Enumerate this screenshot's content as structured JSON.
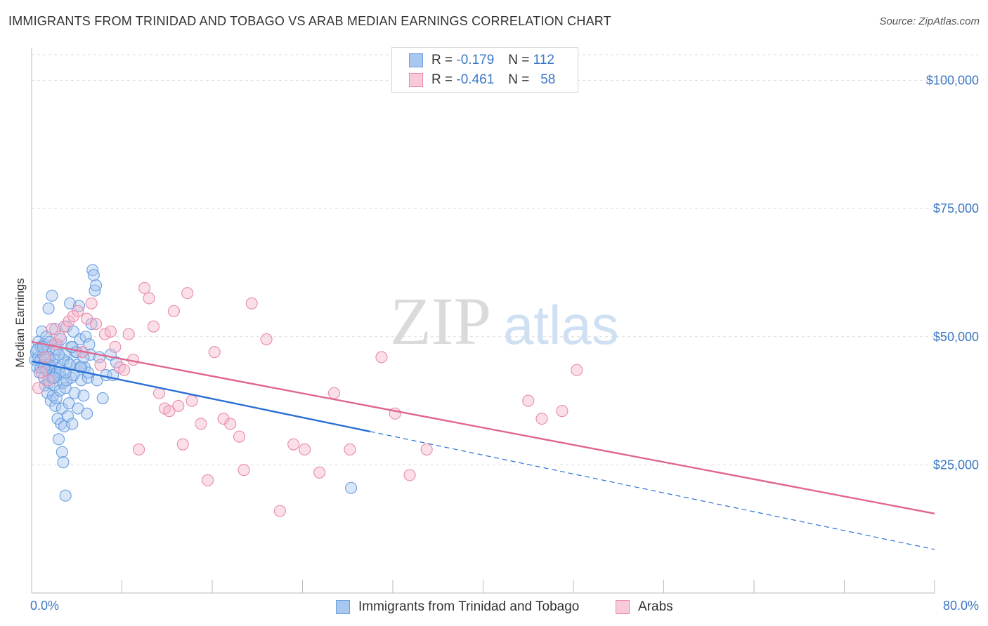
{
  "title": "IMMIGRANTS FROM TRINIDAD AND TOBAGO VS ARAB MEDIAN EARNINGS CORRELATION CHART",
  "source": "Source: ZipAtlas.com",
  "watermark": {
    "zip": "ZIP",
    "atlas": "atlas"
  },
  "legend": {
    "r_label": "R =",
    "n_label": "N =",
    "items": [
      {
        "r": "-0.179",
        "n": "112"
      },
      {
        "r": "-0.461",
        "n": "58"
      }
    ]
  },
  "chart_data": {
    "type": "scatter",
    "title": "IMMIGRANTS FROM TRINIDAD AND TOBAGO VS ARAB MEDIAN EARNINGS CORRELATION CHART",
    "xlabel": "",
    "ylabel": "Median Earnings",
    "xlim": [
      0,
      80
    ],
    "ylim": [
      0,
      105000
    ],
    "x_tick_labels": [
      "0.0%",
      "80.0%"
    ],
    "y_ticks": [
      25000,
      50000,
      75000,
      100000
    ],
    "y_tick_labels": [
      "$25,000",
      "$50,000",
      "$75,000",
      "$100,000"
    ],
    "grid": true,
    "legend_position": "top-center",
    "series": [
      {
        "name": "Immigrants from Trinidad and Tobago",
        "color": "#6a9fe0",
        "fill": "#a9c8ef",
        "trend": {
          "x": [
            0,
            30,
            80
          ],
          "y": [
            45200,
            31500,
            8500
          ],
          "solid_until": 30,
          "color": "#2a6fd4"
        },
        "x": [
          0.3,
          0.4,
          0.5,
          0.6,
          0.6,
          0.7,
          0.8,
          0.8,
          0.9,
          1.0,
          1.0,
          1.1,
          1.1,
          1.2,
          1.2,
          1.3,
          1.3,
          1.4,
          1.4,
          1.5,
          1.5,
          1.6,
          1.6,
          1.7,
          1.7,
          1.8,
          1.8,
          1.9,
          1.9,
          2.0,
          2.0,
          2.1,
          2.1,
          2.2,
          2.2,
          2.3,
          2.3,
          2.4,
          2.4,
          2.5,
          2.5,
          2.6,
          2.6,
          2.7,
          2.7,
          2.8,
          2.8,
          2.9,
          2.9,
          3.0,
          3.0,
          3.1,
          3.2,
          3.2,
          3.3,
          3.4,
          3.5,
          3.5,
          3.6,
          3.7,
          3.8,
          3.9,
          4.0,
          4.1,
          4.2,
          4.3,
          4.4,
          4.5,
          4.6,
          4.7,
          4.8,
          4.9,
          5.0,
          5.1,
          5.2,
          5.3,
          5.4,
          5.5,
          5.6,
          5.7,
          5.8,
          6.0,
          6.3,
          6.6,
          7.0,
          7.2,
          7.5,
          0.5,
          0.8,
          1.0,
          1.3,
          1.6,
          1.9,
          2.2,
          2.5,
          2.8,
          3.1,
          3.4,
          3.7,
          4.0,
          4.3,
          4.6,
          5.0,
          1.2,
          1.5,
          2.0,
          2.4,
          3.0,
          3.6,
          4.4,
          28.3,
          1.1
        ],
        "y": [
          45500,
          47000,
          44000,
          46000,
          49000,
          43000,
          48000,
          45500,
          51000,
          46500,
          44500,
          42000,
          48500,
          40500,
          47000,
          44000,
          50000,
          39000,
          46000,
          43000,
          55500,
          41000,
          49000,
          37500,
          44500,
          58000,
          42000,
          38500,
          47500,
          40500,
          45500,
          36500,
          51500,
          43000,
          38000,
          48500,
          34000,
          42500,
          30000,
          39500,
          44000,
          33000,
          49500,
          36000,
          27500,
          41000,
          25500,
          32500,
          46500,
          19000,
          40000,
          52000,
          34500,
          45000,
          37000,
          56500,
          42000,
          48000,
          33000,
          51000,
          39000,
          47000,
          44500,
          36000,
          56000,
          49500,
          41500,
          47000,
          38500,
          44000,
          50000,
          35000,
          42000,
          48500,
          46500,
          52500,
          63000,
          62000,
          59000,
          60000,
          41500,
          46000,
          38000,
          42500,
          46500,
          42500,
          45000,
          47500,
          44000,
          48000,
          43500,
          46000,
          42000,
          47500,
          43000,
          45500,
          41500,
          44500,
          42500,
          47000,
          44000,
          46000,
          43000,
          45500,
          44500,
          42000,
          46500,
          43000,
          48000,
          44000,
          20500,
          44000
        ]
      },
      {
        "name": "Arabs",
        "color": "#e98aaa",
        "fill": "#f5b8cb",
        "trend": {
          "x": [
            0,
            80
          ],
          "y": [
            49000,
            15500
          ],
          "solid_until": 80,
          "color": "#e0668e"
        },
        "x": [
          0.6,
          0.9,
          1.2,
          1.5,
          1.8,
          2.1,
          2.5,
          2.9,
          3.3,
          3.7,
          4.1,
          4.5,
          4.9,
          5.3,
          5.7,
          6.1,
          6.5,
          7.0,
          7.4,
          7.8,
          8.2,
          8.6,
          9.0,
          9.5,
          10.0,
          10.4,
          10.8,
          11.3,
          11.8,
          12.2,
          12.6,
          13.0,
          13.4,
          13.8,
          14.2,
          15.0,
          15.6,
          16.2,
          17.0,
          17.6,
          18.4,
          18.8,
          19.5,
          20.8,
          22.0,
          23.2,
          24.2,
          25.5,
          26.8,
          28.2,
          31.0,
          32.2,
          33.5,
          35.0,
          44.0,
          45.2,
          47.0,
          48.3
        ],
        "y": [
          40000,
          43000,
          46000,
          41500,
          51500,
          48500,
          50000,
          52000,
          53000,
          54000,
          55000,
          47000,
          53500,
          56500,
          52500,
          44500,
          50500,
          51000,
          48000,
          44000,
          43500,
          50500,
          45500,
          28000,
          59500,
          57500,
          52000,
          39000,
          36000,
          35500,
          55000,
          36500,
          29000,
          58500,
          37500,
          33000,
          22000,
          47000,
          34000,
          33000,
          30500,
          24000,
          56500,
          49500,
          16000,
          29000,
          28000,
          23500,
          39000,
          28000,
          46000,
          35000,
          23000,
          28000,
          37500,
          34000,
          35500,
          43500
        ]
      }
    ]
  },
  "bottom_legend": [
    "Immigrants from Trinidad and Tobago",
    "Arabs"
  ]
}
